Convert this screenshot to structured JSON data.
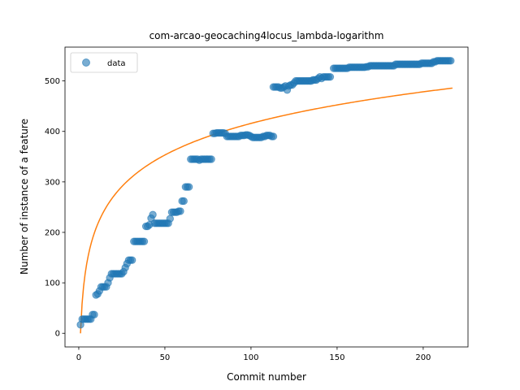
{
  "chart_data": {
    "type": "scatter",
    "title": "com-arcao-geocaching4locus_lambda-logarithm",
    "xlabel": "Commit number",
    "ylabel": "Number of instance of a feature",
    "xlim": [
      -8,
      226
    ],
    "ylim": [
      -27,
      567
    ],
    "xticks": [
      0,
      50,
      100,
      150,
      200
    ],
    "yticks": [
      0,
      100,
      200,
      300,
      400,
      500
    ],
    "grid": false,
    "legend": {
      "placement": "top-left",
      "entries": [
        "data"
      ]
    },
    "colors": {
      "data": "#1f77b4",
      "fit": "#ff7f0e"
    },
    "series": [
      {
        "name": "data",
        "kind": "scatter",
        "points": [
          [
            1,
            17
          ],
          [
            2,
            28
          ],
          [
            3,
            28
          ],
          [
            4,
            28
          ],
          [
            5,
            28
          ],
          [
            6,
            28
          ],
          [
            7,
            28
          ],
          [
            8,
            37
          ],
          [
            9,
            37
          ],
          [
            10,
            76
          ],
          [
            11,
            78
          ],
          [
            12,
            84
          ],
          [
            13,
            92
          ],
          [
            14,
            92
          ],
          [
            15,
            92
          ],
          [
            16,
            92
          ],
          [
            17,
            100
          ],
          [
            18,
            110
          ],
          [
            19,
            118
          ],
          [
            20,
            118
          ],
          [
            21,
            118
          ],
          [
            22,
            118
          ],
          [
            23,
            118
          ],
          [
            24,
            118
          ],
          [
            25,
            118
          ],
          [
            26,
            122
          ],
          [
            27,
            130
          ],
          [
            28,
            138
          ],
          [
            29,
            145
          ],
          [
            30,
            145
          ],
          [
            31,
            145
          ],
          [
            32,
            182
          ],
          [
            33,
            182
          ],
          [
            34,
            182
          ],
          [
            35,
            182
          ],
          [
            36,
            182
          ],
          [
            37,
            182
          ],
          [
            38,
            182
          ],
          [
            39,
            212
          ],
          [
            40,
            212
          ],
          [
            41,
            215
          ],
          [
            42,
            228
          ],
          [
            43,
            235
          ],
          [
            44,
            218
          ],
          [
            45,
            218
          ],
          [
            46,
            218
          ],
          [
            47,
            218
          ],
          [
            48,
            218
          ],
          [
            49,
            218
          ],
          [
            50,
            218
          ],
          [
            51,
            218
          ],
          [
            52,
            218
          ],
          [
            53,
            227
          ],
          [
            54,
            240
          ],
          [
            55,
            240
          ],
          [
            56,
            240
          ],
          [
            57,
            240
          ],
          [
            58,
            242
          ],
          [
            59,
            242
          ],
          [
            60,
            262
          ],
          [
            61,
            262
          ],
          [
            62,
            290
          ],
          [
            63,
            290
          ],
          [
            64,
            290
          ],
          [
            65,
            345
          ],
          [
            66,
            345
          ],
          [
            67,
            345
          ],
          [
            68,
            345
          ],
          [
            69,
            345
          ],
          [
            70,
            343
          ],
          [
            71,
            345
          ],
          [
            72,
            345
          ],
          [
            73,
            345
          ],
          [
            74,
            345
          ],
          [
            75,
            345
          ],
          [
            76,
            345
          ],
          [
            77,
            345
          ],
          [
            78,
            396
          ],
          [
            79,
            396
          ],
          [
            80,
            397
          ],
          [
            81,
            397
          ],
          [
            82,
            397
          ],
          [
            83,
            397
          ],
          [
            84,
            397
          ],
          [
            85,
            396
          ],
          [
            86,
            390
          ],
          [
            87,
            390
          ],
          [
            88,
            390
          ],
          [
            89,
            390
          ],
          [
            90,
            390
          ],
          [
            91,
            390
          ],
          [
            92,
            390
          ],
          [
            93,
            390
          ],
          [
            94,
            392
          ],
          [
            95,
            392
          ],
          [
            96,
            392
          ],
          [
            97,
            393
          ],
          [
            98,
            393
          ],
          [
            99,
            392
          ],
          [
            100,
            390
          ],
          [
            101,
            388
          ],
          [
            102,
            388
          ],
          [
            103,
            388
          ],
          [
            104,
            388
          ],
          [
            105,
            388
          ],
          [
            106,
            388
          ],
          [
            107,
            390
          ],
          [
            108,
            390
          ],
          [
            109,
            392
          ],
          [
            110,
            392
          ],
          [
            111,
            392
          ],
          [
            112,
            390
          ],
          [
            113,
            390
          ],
          [
            113,
            488
          ],
          [
            114,
            488
          ],
          [
            115,
            488
          ],
          [
            116,
            488
          ],
          [
            117,
            486
          ],
          [
            118,
            486
          ],
          [
            119,
            488
          ],
          [
            120,
            490
          ],
          [
            121,
            482
          ],
          [
            122,
            490
          ],
          [
            123,
            492
          ],
          [
            124,
            492
          ],
          [
            125,
            496
          ],
          [
            126,
            500
          ],
          [
            127,
            500
          ],
          [
            128,
            500
          ],
          [
            129,
            500
          ],
          [
            130,
            500
          ],
          [
            131,
            500
          ],
          [
            132,
            500
          ],
          [
            133,
            500
          ],
          [
            134,
            500
          ],
          [
            135,
            500
          ],
          [
            136,
            502
          ],
          [
            137,
            502
          ],
          [
            138,
            502
          ],
          [
            139,
            505
          ],
          [
            140,
            508
          ],
          [
            141,
            505
          ],
          [
            142,
            508
          ],
          [
            143,
            508
          ],
          [
            144,
            508
          ],
          [
            145,
            508
          ],
          [
            146,
            508
          ],
          [
            148,
            525
          ],
          [
            149,
            525
          ],
          [
            150,
            525
          ],
          [
            151,
            525
          ],
          [
            152,
            525
          ],
          [
            153,
            525
          ],
          [
            154,
            525
          ],
          [
            155,
            525
          ],
          [
            156,
            525
          ],
          [
            157,
            527
          ],
          [
            158,
            527
          ],
          [
            159,
            527
          ],
          [
            160,
            527
          ],
          [
            161,
            527
          ],
          [
            162,
            527
          ],
          [
            163,
            527
          ],
          [
            164,
            527
          ],
          [
            165,
            527
          ],
          [
            166,
            527
          ],
          [
            167,
            528
          ],
          [
            168,
            528
          ],
          [
            169,
            530
          ],
          [
            170,
            530
          ],
          [
            171,
            530
          ],
          [
            172,
            530
          ],
          [
            173,
            530
          ],
          [
            174,
            530
          ],
          [
            175,
            530
          ],
          [
            176,
            530
          ],
          [
            177,
            530
          ],
          [
            178,
            530
          ],
          [
            179,
            530
          ],
          [
            180,
            530
          ],
          [
            181,
            530
          ],
          [
            182,
            530
          ],
          [
            183,
            530
          ],
          [
            184,
            533
          ],
          [
            185,
            533
          ],
          [
            186,
            533
          ],
          [
            187,
            533
          ],
          [
            188,
            533
          ],
          [
            189,
            533
          ],
          [
            190,
            533
          ],
          [
            191,
            533
          ],
          [
            192,
            533
          ],
          [
            193,
            533
          ],
          [
            194,
            533
          ],
          [
            195,
            533
          ],
          [
            196,
            533
          ],
          [
            197,
            533
          ],
          [
            198,
            533
          ],
          [
            199,
            535
          ],
          [
            200,
            535
          ],
          [
            201,
            535
          ],
          [
            202,
            535
          ],
          [
            203,
            535
          ],
          [
            204,
            535
          ],
          [
            205,
            535
          ],
          [
            206,
            538
          ],
          [
            207,
            538
          ],
          [
            208,
            540
          ],
          [
            209,
            540
          ],
          [
            210,
            540
          ],
          [
            211,
            540
          ],
          [
            212,
            540
          ],
          [
            213,
            540
          ],
          [
            214,
            540
          ],
          [
            215,
            540
          ],
          [
            216,
            540
          ]
        ]
      },
      {
        "name": "",
        "kind": "line",
        "x_range": [
          1,
          217
        ],
        "model": "y = a*ln(x) + b",
        "a": 90.3,
        "b": 0
      }
    ]
  }
}
